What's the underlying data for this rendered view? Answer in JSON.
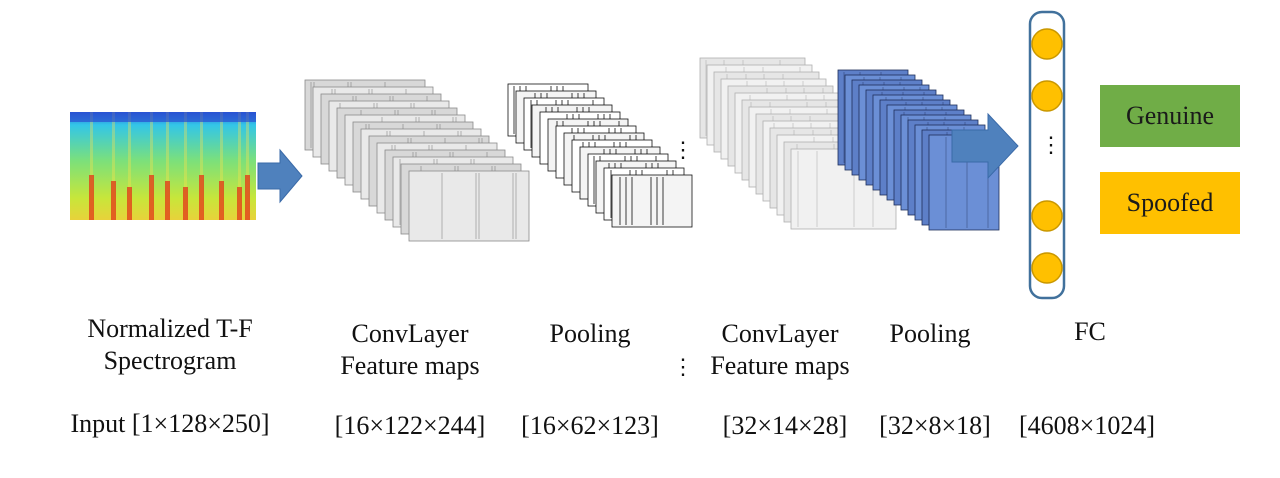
{
  "stages": [
    {
      "id": "input",
      "title_lines": [
        "Normalized T-F",
        "Spectrogram"
      ],
      "dims": "Input [1×128×250]"
    },
    {
      "id": "conv1",
      "title_lines": [
        "ConvLayer",
        "Feature maps"
      ],
      "dims": "[16×122×244]"
    },
    {
      "id": "pool1",
      "title_lines": [
        "Pooling"
      ],
      "dims": "[16×62×123]"
    },
    {
      "id": "conv2",
      "title_lines": [
        "ConvLayer",
        "Feature maps"
      ],
      "dims": "[32×14×28]"
    },
    {
      "id": "pool2",
      "title_lines": [
        "Pooling"
      ],
      "dims": "[32×8×18]"
    },
    {
      "id": "fc",
      "title_lines": [
        "FC"
      ],
      "dims": "[4608×1024]"
    }
  ],
  "separator": "⋮",
  "outputs": {
    "genuine": "Genuine",
    "spoofed": "Spoofed"
  },
  "colors": {
    "arrow": "#4f81bd",
    "genuine": "#70ad47",
    "spoofed": "#ffc000",
    "fc_node": "#ffc000",
    "fc_border": "#41719c",
    "pool2_maps": "#6b8fd6"
  }
}
